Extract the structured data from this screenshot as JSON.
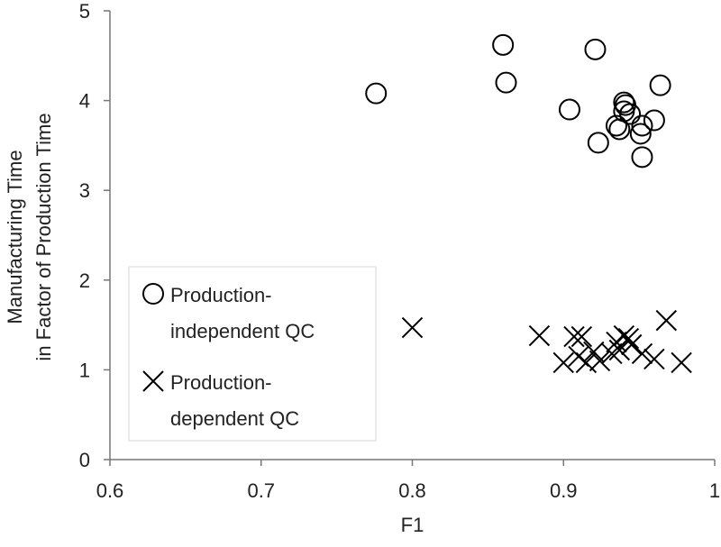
{
  "chart_data": {
    "type": "scatter",
    "xlabel": "F1",
    "ylabel_lines": [
      "Manufacturing Time",
      "in Factor of Production Time"
    ],
    "xlim": [
      0.6,
      1
    ],
    "ylim": [
      0,
      5
    ],
    "xticks": [
      "0.6",
      "0.7",
      "0.8",
      "0.9",
      "1"
    ],
    "yticks": [
      "0",
      "1",
      "2",
      "3",
      "4",
      "5"
    ],
    "grid": false,
    "legend_position": "bottom-left",
    "series": [
      {
        "name": "Production-\nindependent QC",
        "legend_lines": [
          "Production-",
          "independent QC"
        ],
        "marker": "circle",
        "color": "#000000",
        "points": [
          [
            0.776,
            4.08
          ],
          [
            0.86,
            4.62
          ],
          [
            0.862,
            4.2
          ],
          [
            0.921,
            4.57
          ],
          [
            0.904,
            3.9
          ],
          [
            0.923,
            3.53
          ],
          [
            0.935,
            3.72
          ],
          [
            0.937,
            3.68
          ],
          [
            0.94,
            3.98
          ],
          [
            0.941,
            3.95
          ],
          [
            0.94,
            3.88
          ],
          [
            0.944,
            3.85
          ],
          [
            0.951,
            3.63
          ],
          [
            0.952,
            3.72
          ],
          [
            0.952,
            3.37
          ],
          [
            0.96,
            3.78
          ],
          [
            0.964,
            4.17
          ]
        ]
      },
      {
        "name": "Production-\ndependent QC",
        "legend_lines": [
          "Production-",
          "dependent QC"
        ],
        "marker": "x",
        "color": "#000000",
        "points": [
          [
            0.8,
            1.47
          ],
          [
            0.884,
            1.38
          ],
          [
            0.9,
            1.08
          ],
          [
            0.907,
            1.37
          ],
          [
            0.912,
            1.37
          ],
          [
            0.91,
            1.15
          ],
          [
            0.915,
            1.08
          ],
          [
            0.92,
            1.2
          ],
          [
            0.924,
            1.1
          ],
          [
            0.932,
            1.18
          ],
          [
            0.935,
            1.31
          ],
          [
            0.937,
            1.22
          ],
          [
            0.94,
            1.38
          ],
          [
            0.943,
            1.35
          ],
          [
            0.945,
            1.28
          ],
          [
            0.952,
            1.18
          ],
          [
            0.96,
            1.12
          ],
          [
            0.968,
            1.55
          ],
          [
            0.978,
            1.08
          ]
        ]
      }
    ]
  }
}
